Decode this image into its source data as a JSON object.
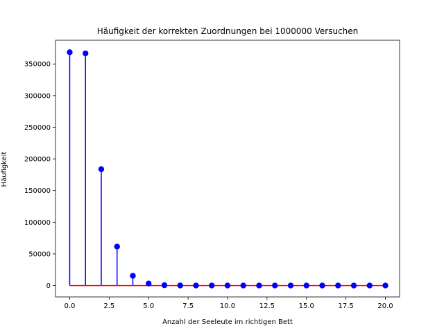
{
  "chart_data": {
    "type": "stem",
    "title": "Häufigkeit der korrekten Zuordnungen bei 1000000 Versuchen",
    "xlabel": "Anzahl der Seeleute im richtigen Bett",
    "ylabel": "Häufigkeit",
    "x": [
      0,
      1,
      2,
      3,
      4,
      5,
      6,
      7,
      8,
      9,
      10,
      11,
      12,
      13,
      14,
      15,
      16,
      17,
      18,
      19,
      20
    ],
    "y": [
      368500,
      366800,
      183800,
      61500,
      15400,
      3100,
      500,
      70,
      10,
      1,
      0,
      0,
      0,
      0,
      0,
      0,
      0,
      0,
      0,
      0,
      0
    ],
    "xlim": [
      -0.9,
      20.9
    ],
    "ylim": [
      -18000,
      387500
    ],
    "xticks": [
      0.0,
      2.5,
      5.0,
      7.5,
      10.0,
      12.5,
      15.0,
      17.5,
      20.0
    ],
    "xtick_labels": [
      "0.0",
      "2.5",
      "5.0",
      "7.5",
      "10.0",
      "12.5",
      "15.0",
      "17.5",
      "20.0"
    ],
    "yticks": [
      0,
      50000,
      100000,
      150000,
      200000,
      250000,
      300000,
      350000
    ],
    "ytick_labels": [
      "0",
      "50000",
      "100000",
      "150000",
      "200000",
      "250000",
      "300000",
      "350000"
    ],
    "grid": false,
    "colors": {
      "stem": "#0000ff",
      "marker": "#0000ff",
      "baseline": "#ff0000",
      "axes": "#000000"
    }
  }
}
